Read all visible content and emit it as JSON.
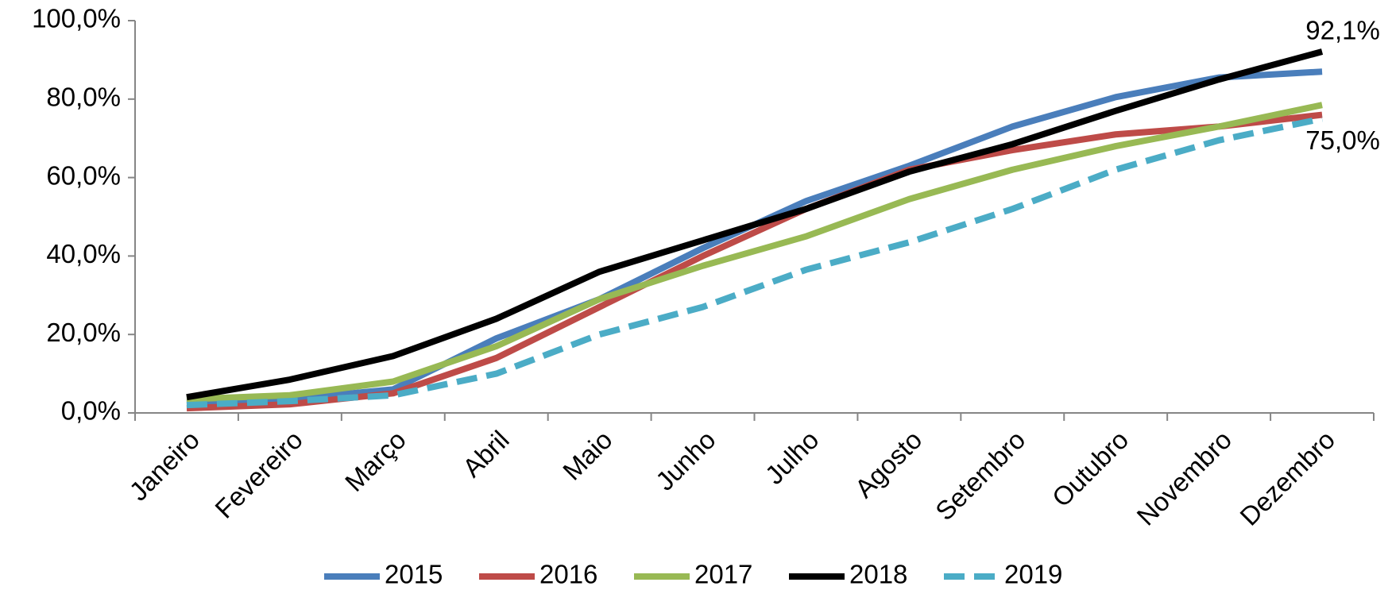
{
  "chart_data": {
    "type": "line",
    "categories": [
      "Janeiro",
      "Fevereiro",
      "Março",
      "Abril",
      "Maio",
      "Junho",
      "Julho",
      "Agosto",
      "Setembro",
      "Outubro",
      "Novembro",
      "Dezembro"
    ],
    "series": [
      {
        "name": "2015",
        "color": "#4a7ebb",
        "values": [
          2.5,
          3.5,
          6,
          19,
          29,
          42,
          54,
          63,
          73,
          80.5,
          85.5,
          87
        ]
      },
      {
        "name": "2016",
        "color": "#be4b48",
        "values": [
          1.2,
          2.2,
          5,
          14,
          27,
          40,
          52,
          62,
          67,
          71,
          73,
          76
        ]
      },
      {
        "name": "2017",
        "color": "#98b954",
        "values": [
          3.5,
          4.5,
          8,
          17,
          29,
          37.5,
          45,
          54.5,
          62,
          68,
          73,
          78.5
        ]
      },
      {
        "name": "2018",
        "color": "#000000",
        "values": [
          4,
          8.5,
          14.5,
          24,
          36,
          44,
          52,
          61.5,
          68.5,
          77,
          85,
          92.1
        ],
        "value_labels": [
          null,
          null,
          null,
          null,
          null,
          null,
          null,
          null,
          null,
          null,
          null,
          "92,1%"
        ]
      },
      {
        "name": "2019",
        "color": "#4bacc6",
        "dashed": true,
        "values": [
          2,
          3,
          4.5,
          10,
          20,
          27,
          36.5,
          43.5,
          52,
          62,
          69.5,
          75
        ],
        "value_labels": [
          null,
          null,
          null,
          null,
          null,
          null,
          null,
          null,
          null,
          null,
          null,
          "75,0%"
        ]
      }
    ],
    "ylim": [
      0,
      100
    ],
    "yticks": [
      {
        "value": 0,
        "label": "0,0%"
      },
      {
        "value": 20,
        "label": "20,0%"
      },
      {
        "value": 40,
        "label": "40,0%"
      },
      {
        "value": 60,
        "label": "60,0%"
      },
      {
        "value": 80,
        "label": "80,0%"
      },
      {
        "value": 100,
        "label": "100,0%"
      }
    ],
    "legend": "bottom"
  }
}
